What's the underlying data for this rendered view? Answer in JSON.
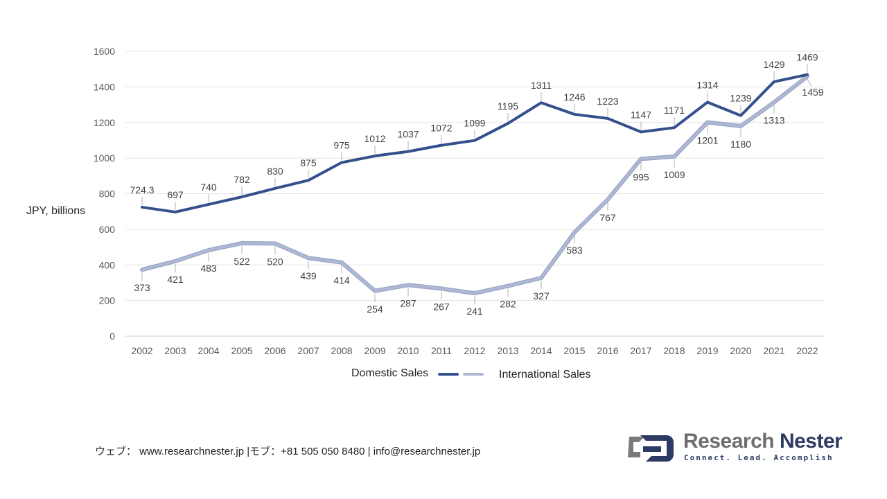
{
  "chart_data": {
    "type": "line",
    "ylabel": "JPY, billions",
    "ylim": [
      0,
      1600
    ],
    "yticks": [
      "0",
      "200",
      "400",
      "600",
      "800",
      "1000",
      "1200",
      "1400",
      "1600"
    ],
    "categories": [
      "2002",
      "2003",
      "2004",
      "2005",
      "2006",
      "2007",
      "2008",
      "2009",
      "2010",
      "2011",
      "2012",
      "2013",
      "2014",
      "2015",
      "2016",
      "2017",
      "2018",
      "2019",
      "2020",
      "2021",
      "2022"
    ],
    "grid": true,
    "legend_position": "bottom",
    "series": [
      {
        "name": "Domestic Sales",
        "color": "#34508c",
        "values": [
          724.3,
          697,
          740,
          782,
          830,
          875,
          975,
          1012,
          1037,
          1072,
          1099,
          1195,
          1311,
          1246,
          1223,
          1147,
          1171,
          1314,
          1239,
          1429,
          1469
        ],
        "labels": [
          "724.3",
          "697",
          "740",
          "782",
          "830",
          "875",
          "975",
          "1012",
          "1037",
          "1072",
          "1099",
          "1195",
          "1311",
          "1246",
          "1223",
          "1147",
          "1171",
          "1314",
          "1239",
          "1429",
          "1469"
        ]
      },
      {
        "name": "International Sales",
        "color": "#aeb8d4",
        "values": [
          373,
          421,
          483,
          522,
          520,
          439,
          414,
          254,
          287,
          267,
          241,
          282,
          327,
          583,
          767,
          995,
          1009,
          1201,
          1180,
          1313,
          1459
        ],
        "labels": [
          "373",
          "421",
          "483",
          "522",
          "520",
          "439",
          "414",
          "254",
          "287",
          "267",
          "241",
          "282",
          "327",
          "583",
          "767",
          "995",
          "1009",
          "1201",
          "1180",
          "1313",
          "1459"
        ]
      }
    ]
  },
  "footer": {
    "text": "ウェブ：  www.researchnester.jp   |モブ：+81 505 050 8480 | info@researchnester.jp"
  },
  "logo": {
    "name_part1": "Research",
    "name_part2": "Nester",
    "tagline": "Connect. Lead. Accomplish",
    "name_color": "#6e6e6e",
    "accent_color": "#2d3a63"
  }
}
